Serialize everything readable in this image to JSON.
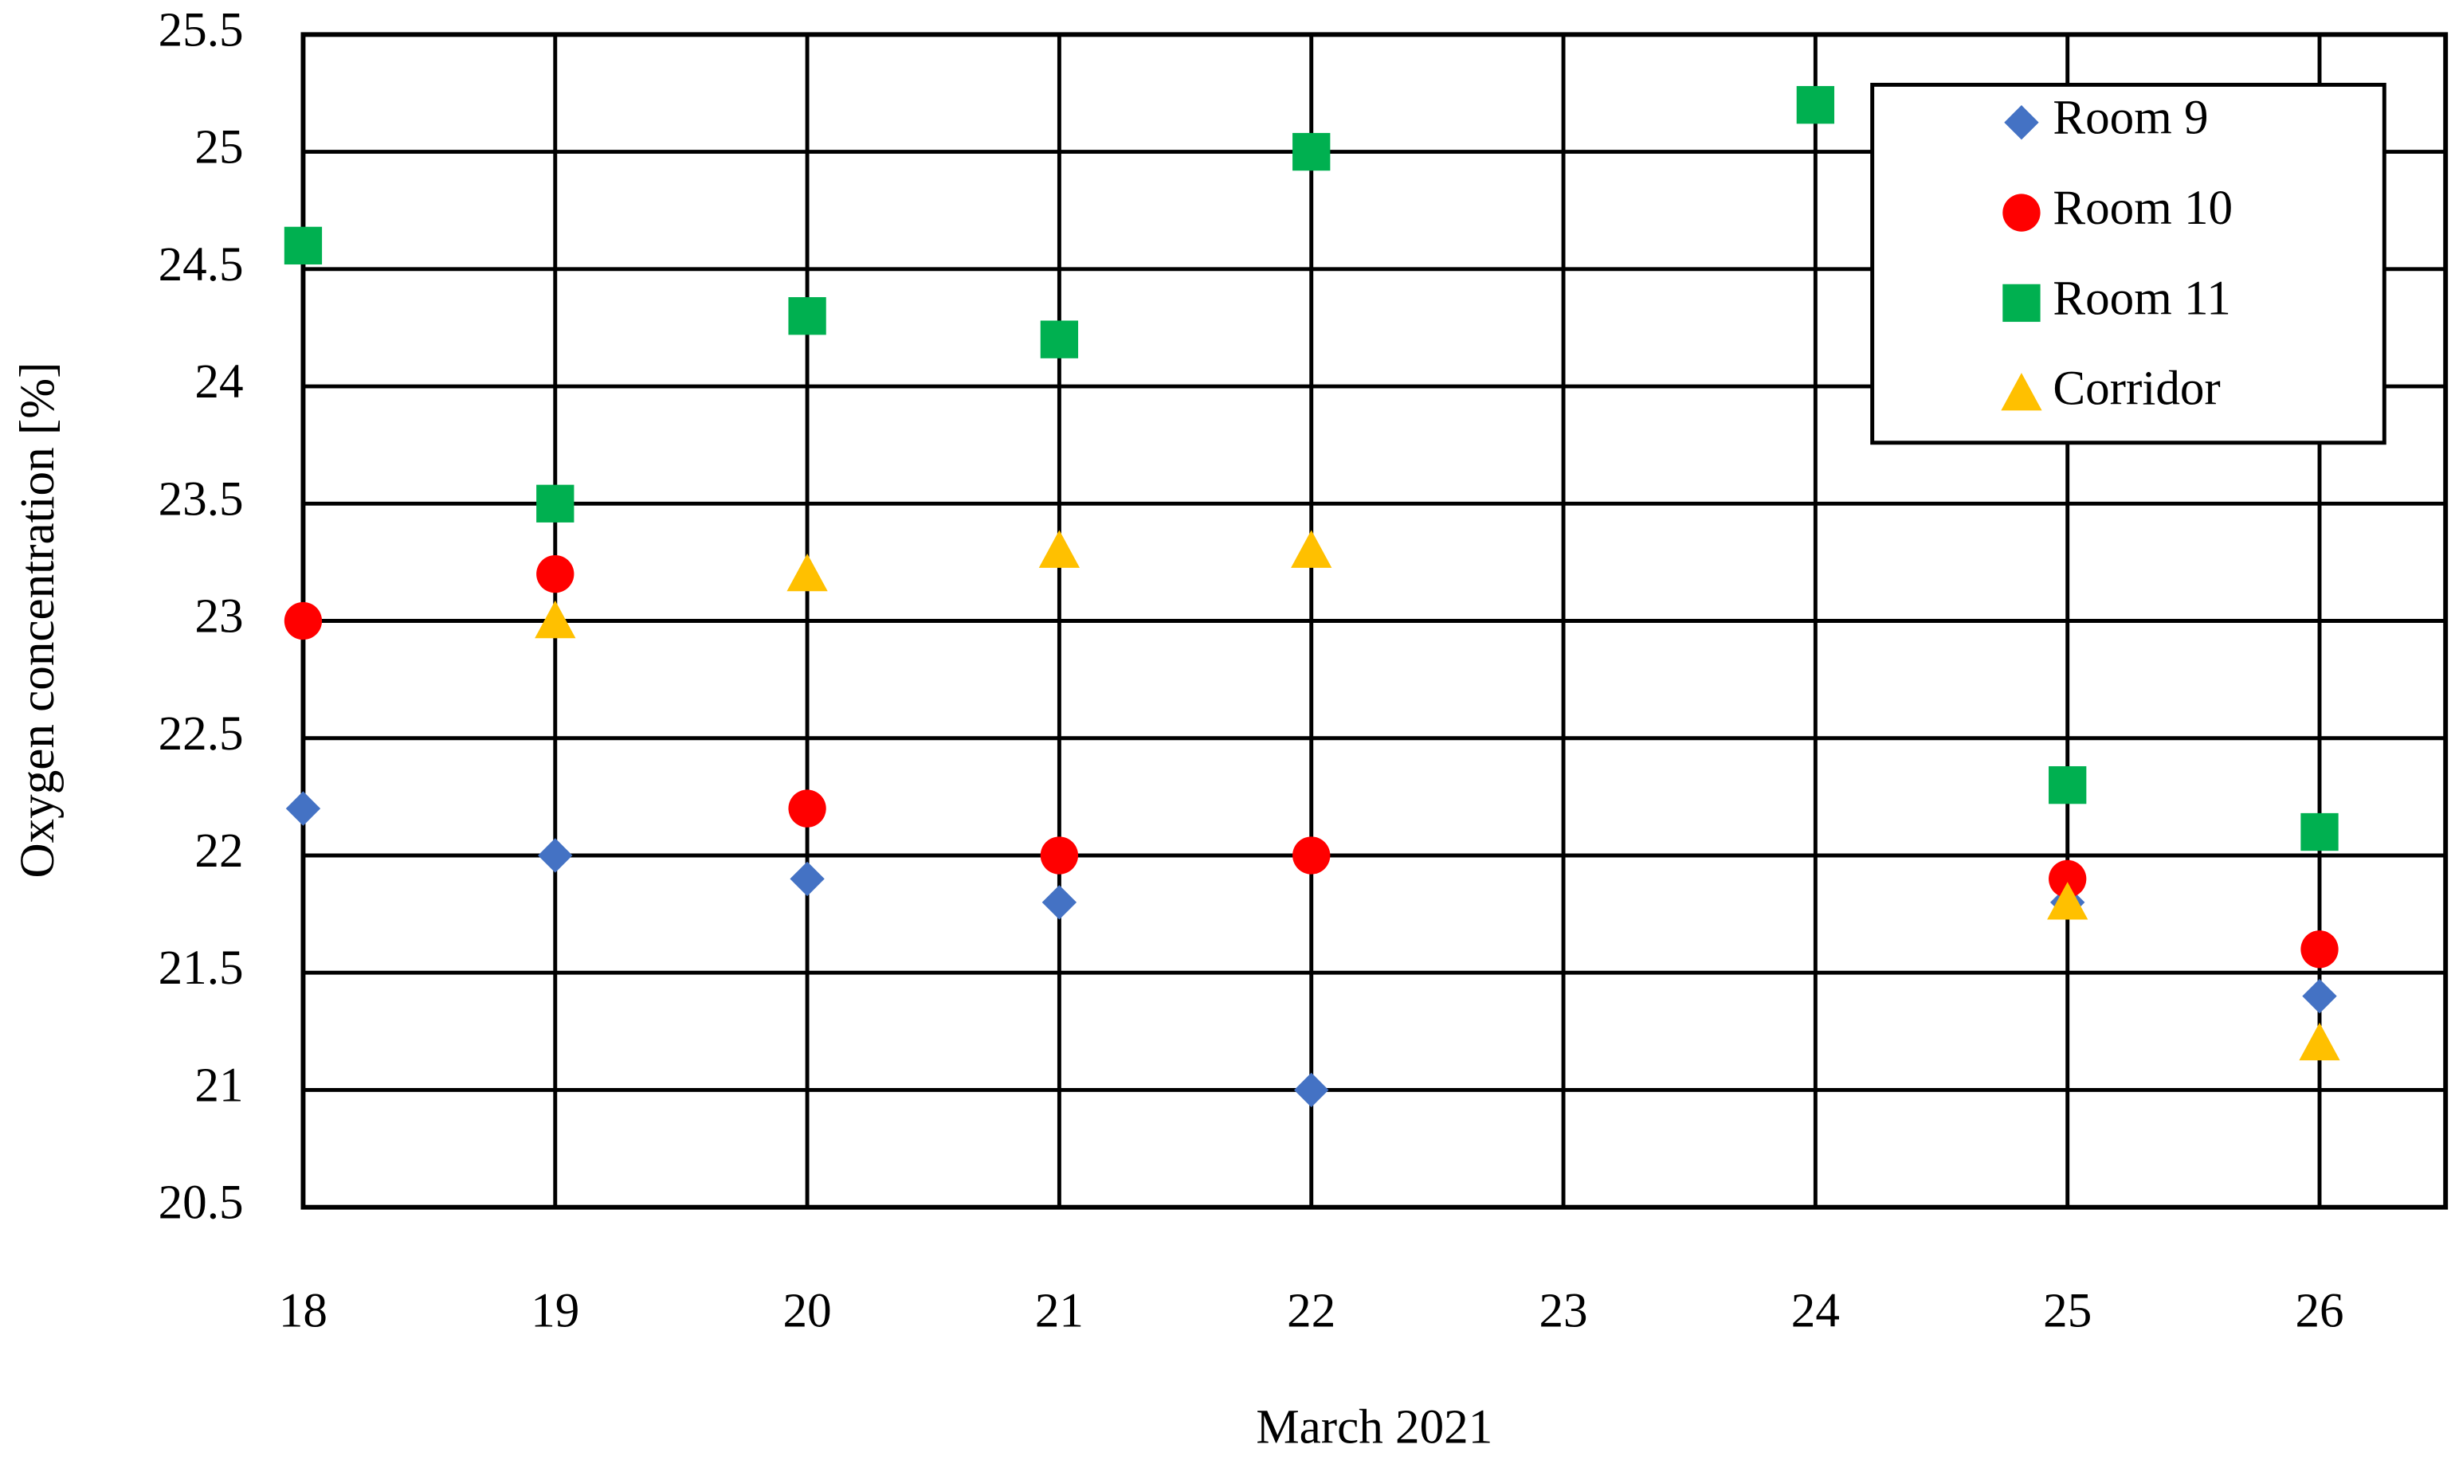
{
  "chart_data": {
    "type": "scatter",
    "x_label": "March 2021",
    "y_label": "Oxygen concentration [%]",
    "xlim": [
      18,
      26.5
    ],
    "xticks": [
      18,
      19,
      20,
      21,
      22,
      23,
      24,
      25,
      26
    ],
    "ylim": [
      20.5,
      25.5
    ],
    "yticks": [
      20.5,
      21,
      21.5,
      22,
      22.5,
      23,
      23.5,
      24,
      24.5,
      25,
      25.5
    ],
    "grid": true,
    "legend": "upper right",
    "series": [
      {
        "name": "Room 9",
        "color": "#4472c4",
        "marker": "diamond",
        "x": [
          18,
          19,
          20,
          21,
          22,
          25,
          26
        ],
        "values": [
          22.2,
          22.0,
          21.9,
          21.8,
          21.0,
          21.8,
          21.4
        ]
      },
      {
        "name": "Room 10",
        "color": "#ff0000",
        "marker": "circle",
        "x": [
          18,
          19,
          20,
          21,
          22,
          25,
          26
        ],
        "values": [
          23.0,
          23.2,
          22.2,
          22.0,
          22.0,
          21.9,
          21.6
        ]
      },
      {
        "name": "Room 11",
        "color": "#00b050",
        "marker": "square",
        "x": [
          18,
          19,
          20,
          21,
          22,
          24,
          25,
          26
        ],
        "values": [
          24.6,
          23.5,
          24.3,
          24.2,
          25.0,
          25.2,
          22.3,
          22.1
        ]
      },
      {
        "name": "Corridor",
        "color": "#ffc000",
        "marker": "triangle",
        "x": [
          19,
          20,
          21,
          22,
          25,
          26
        ],
        "values": [
          23.0,
          23.2,
          23.3,
          23.3,
          21.8,
          21.2
        ]
      }
    ]
  }
}
